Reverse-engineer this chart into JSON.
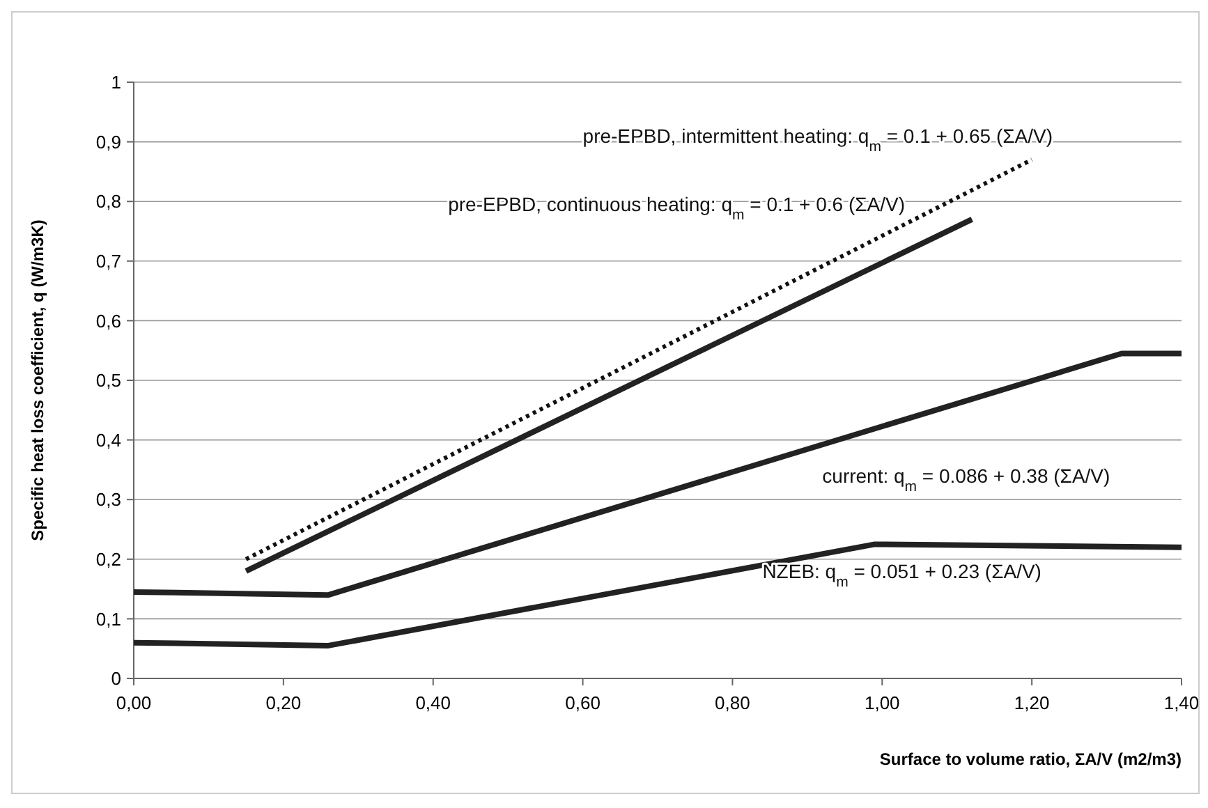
{
  "chart_data": {
    "type": "line",
    "xlabel": "Surface to volume ratio,  ΣA/V (m2/m3)",
    "ylabel": "Specific heat loss coefficient, q  (W/m3K)",
    "xlim": [
      0,
      1.4
    ],
    "ylim": [
      0,
      1
    ],
    "xticks": [
      {
        "value": 0,
        "label": "0,00"
      },
      {
        "value": 0.2,
        "label": "0,20"
      },
      {
        "value": 0.4,
        "label": "0,40"
      },
      {
        "value": 0.6,
        "label": "0,60"
      },
      {
        "value": 0.8,
        "label": "0,80"
      },
      {
        "value": 1,
        "label": "1,00"
      },
      {
        "value": 1.2,
        "label": "1,20"
      },
      {
        "value": 1.4,
        "label": "1,40"
      }
    ],
    "yticks": [
      0,
      {
        "value": 0.1,
        "label": "0,1"
      },
      {
        "value": 0.2,
        "label": "0,2"
      },
      {
        "value": 0.3,
        "label": "0,3"
      },
      {
        "value": 0.4,
        "label": "0,4"
      },
      {
        "value": 0.5,
        "label": "0,5"
      },
      {
        "value": 0.6,
        "label": "0,6"
      },
      {
        "value": 0.7,
        "label": "0,7"
      },
      {
        "value": 0.8,
        "label": "0,8"
      },
      {
        "value": 0.9,
        "label": "0,9"
      },
      1
    ],
    "grid": "y",
    "series": [
      {
        "color": "#111111",
        "line_style": "dotted",
        "x": [
          0.15,
          1.2
        ],
        "values": [
          0.2,
          0.87
        ]
      },
      {
        "color": "#222222",
        "line_style": "solid",
        "x": [
          0.15,
          1.12
        ],
        "values": [
          0.18,
          0.77
        ]
      },
      {
        "color": "#222222",
        "line_style": "solid",
        "x": [
          0,
          0.26,
          1.32,
          1.4
        ],
        "values": [
          0.145,
          0.14,
          0.545,
          0.545
        ]
      },
      {
        "color": "#222222",
        "line_style": "solid",
        "x": [
          0,
          0.26,
          0.99,
          1.4
        ],
        "values": [
          0.06,
          0.055,
          0.225,
          0.22
        ]
      }
    ],
    "annotations": [
      "pre-EPBD, intermittent heating: q$_{m}$ = 0.1 + 0.65 (ΣA/V)",
      "pre-EPBD, continuous heating: q$_{m}$ = 0.1 + 0.6 (ΣA/V)",
      "current: q$_{m}$ = 0.086 + 0.38 (ΣA/V)",
      "NZEB: q$_{m}$ = 0.051 + 0.23 (ΣA/V)"
    ]
  }
}
